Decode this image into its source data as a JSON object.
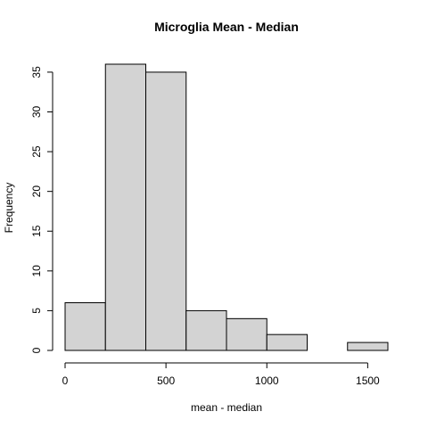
{
  "chart_data": {
    "type": "bar",
    "title": "Microglia Mean - Median",
    "xlabel": "mean - median",
    "ylabel": "Frequency",
    "bins": [
      {
        "start": 0,
        "end": 200,
        "count": 6
      },
      {
        "start": 200,
        "end": 400,
        "count": 36
      },
      {
        "start": 400,
        "end": 600,
        "count": 35
      },
      {
        "start": 600,
        "end": 800,
        "count": 5
      },
      {
        "start": 800,
        "end": 1000,
        "count": 4
      },
      {
        "start": 1000,
        "end": 1200,
        "count": 2
      },
      {
        "start": 1200,
        "end": 1400,
        "count": 0
      },
      {
        "start": 1400,
        "end": 1600,
        "count": 1
      }
    ],
    "xticks": [
      0,
      500,
      1000,
      1500
    ],
    "yticks": [
      0,
      5,
      10,
      15,
      20,
      25,
      30,
      35
    ],
    "xlim": [
      0,
      1600
    ],
    "ylim": [
      0,
      36
    ],
    "bar_fill": "#d3d3d3",
    "bar_stroke": "#000000",
    "grid": false,
    "legend": "none"
  }
}
